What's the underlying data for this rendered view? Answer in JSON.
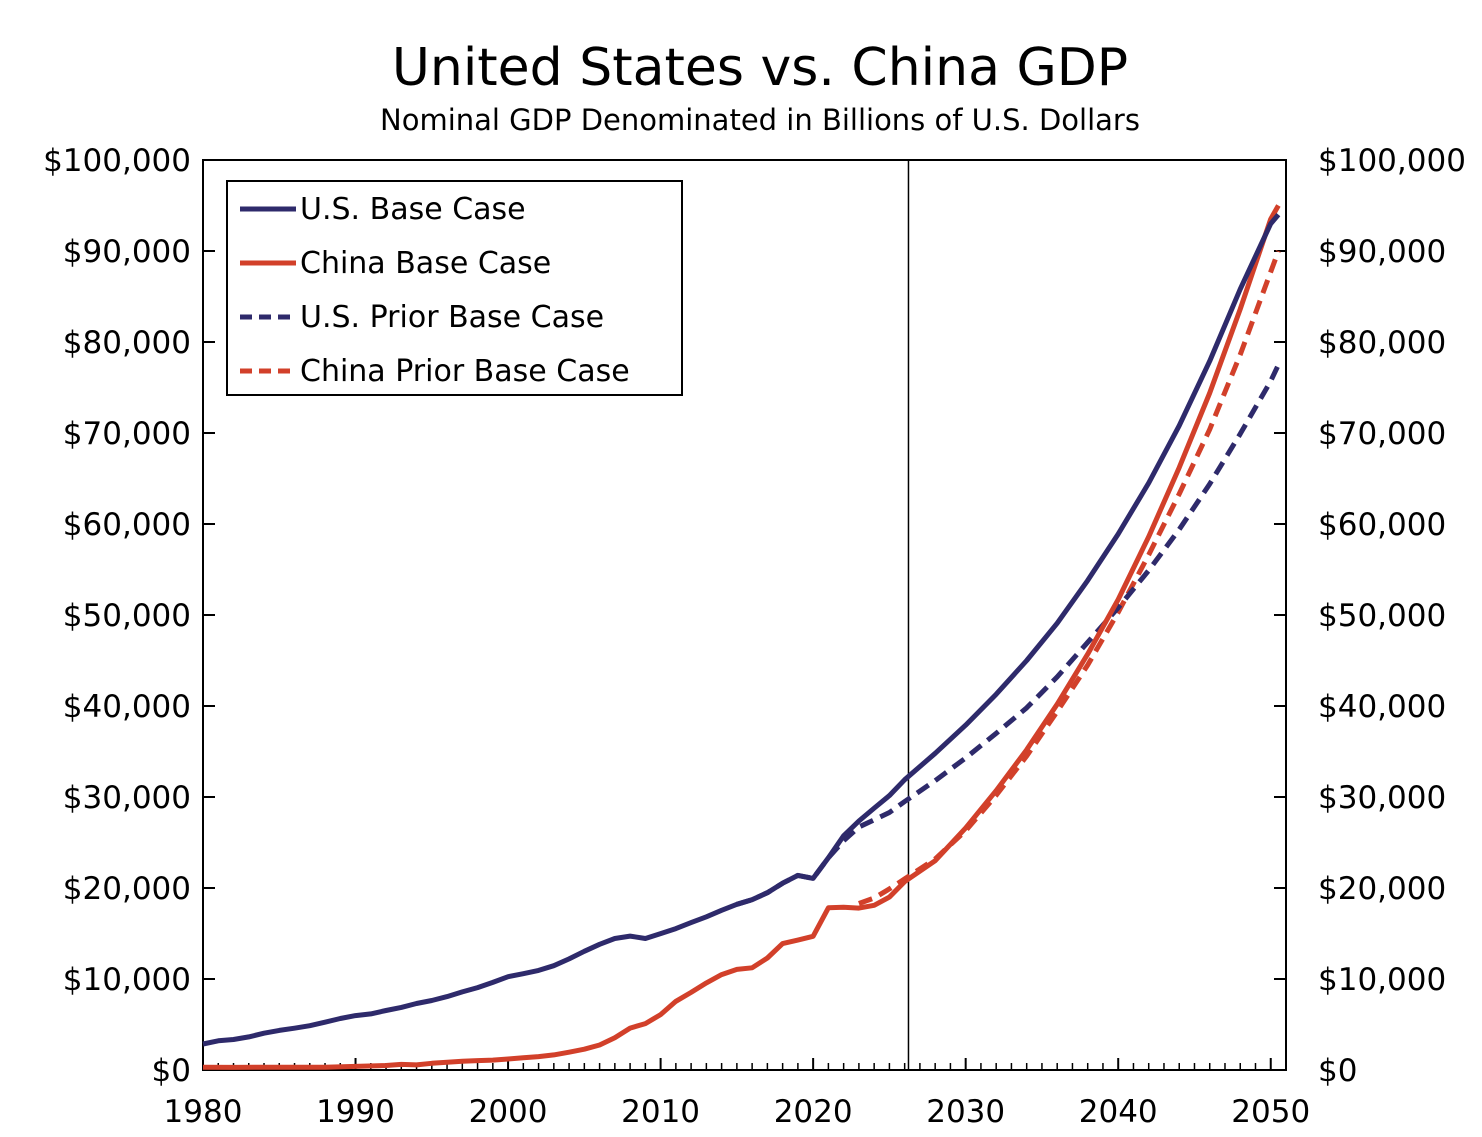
{
  "chart_data": {
    "type": "line",
    "title": "United States vs. China GDP",
    "subtitle": "Nominal GDP Denominated in Billions of U.S. Dollars",
    "xlabel": "",
    "ylabel": "",
    "xlim": [
      1980,
      2051
    ],
    "ylim": [
      0,
      100000
    ],
    "x_ticks": [
      1980,
      1990,
      2000,
      2010,
      2020,
      2030,
      2040,
      2050
    ],
    "y_ticks": [
      0,
      10000,
      20000,
      30000,
      40000,
      50000,
      60000,
      70000,
      80000,
      90000,
      100000
    ],
    "y_tick_labels": [
      "$0",
      "$10,000",
      "$20,000",
      "$30,000",
      "$40,000",
      "$50,000",
      "$60,000",
      "$70,000",
      "$80,000",
      "$90,000",
      "$100,000"
    ],
    "y2_tick_labels": [
      "$0",
      "$10,000",
      "$20,000",
      "$30,000",
      "$40,000",
      "$50,000",
      "$60,000",
      "$70,000",
      "$80,000",
      "$90,000",
      "$100,000"
    ],
    "forecast_divider_x": 2026.25,
    "legend_position": "top-left",
    "colors": {
      "us": "#2e2a6b",
      "china": "#d2402a"
    },
    "series": [
      {
        "name": "U.S. Base Case",
        "color": "#2e2a6b",
        "style": "solid",
        "x": [
          1980,
          1981,
          1982,
          1983,
          1984,
          1985,
          1986,
          1987,
          1988,
          1989,
          1990,
          1991,
          1992,
          1993,
          1994,
          1995,
          1996,
          1997,
          1998,
          1999,
          2000,
          2001,
          2002,
          2003,
          2004,
          2005,
          2006,
          2007,
          2008,
          2009,
          2010,
          2011,
          2012,
          2013,
          2014,
          2015,
          2016,
          2017,
          2018,
          2019,
          2020,
          2021,
          2022,
          2023,
          2024,
          2025,
          2026,
          2028,
          2030,
          2032,
          2034,
          2036,
          2038,
          2040,
          2042,
          2044,
          2046,
          2048,
          2050,
          2050.5
        ],
        "y": [
          2860,
          3210,
          3350,
          3640,
          4040,
          4350,
          4590,
          4870,
          5250,
          5660,
          5980,
          6170,
          6540,
          6880,
          7310,
          7640,
          8070,
          8580,
          9060,
          9630,
          10250,
          10580,
          10940,
          11460,
          12210,
          13040,
          13810,
          14450,
          14710,
          14450,
          14990,
          15540,
          16200,
          16840,
          17550,
          18210,
          18710,
          19480,
          20530,
          21380,
          21060,
          23320,
          25740,
          27360,
          28780,
          30150,
          31900,
          34800,
          37900,
          41300,
          45000,
          49100,
          53800,
          58900,
          64500,
          70800,
          77900,
          85800,
          93000,
          94000
        ]
      },
      {
        "name": "China Base Case",
        "color": "#d2402a",
        "style": "solid",
        "x": [
          1980,
          1982,
          1984,
          1986,
          1988,
          1990,
          1992,
          1993,
          1994,
          1995,
          1996,
          1997,
          1998,
          1999,
          2000,
          2001,
          2002,
          2003,
          2004,
          2005,
          2006,
          2007,
          2008,
          2009,
          2010,
          2011,
          2012,
          2013,
          2014,
          2015,
          2016,
          2017,
          2018,
          2019,
          2020,
          2021,
          2022,
          2023,
          2024,
          2025,
          2026,
          2028,
          2030,
          2032,
          2034,
          2036,
          2038,
          2040,
          2042,
          2044,
          2046,
          2048,
          2050,
          2050.5
        ],
        "y": [
          300,
          290,
          310,
          300,
          310,
          400,
          490,
          620,
          560,
          740,
          860,
          960,
          1030,
          1090,
          1210,
          1340,
          1470,
          1660,
          1960,
          2290,
          2750,
          3550,
          4600,
          5100,
          6090,
          7550,
          8530,
          9570,
          10480,
          11060,
          11230,
          12310,
          13890,
          14280,
          14690,
          17820,
          17880,
          17790,
          18100,
          19000,
          20700,
          23000,
          26600,
          30700,
          35200,
          40200,
          45700,
          51700,
          58600,
          66200,
          74400,
          83600,
          93500,
          95000
        ]
      },
      {
        "name": "U.S. Prior Base Case",
        "color": "#2e2a6b",
        "style": "dashed",
        "x": [
          2015,
          2016,
          2017,
          2018,
          2019,
          2020,
          2021,
          2022,
          2023,
          2024,
          2025,
          2026,
          2028,
          2030,
          2032,
          2034,
          2036,
          2038,
          2040,
          2042,
          2044,
          2046,
          2048,
          2050,
          2050.5
        ],
        "y": [
          18210,
          18710,
          19480,
          20530,
          21380,
          21060,
          23320,
          25200,
          26700,
          27500,
          28300,
          29500,
          31800,
          34300,
          37000,
          39800,
          43200,
          47000,
          50800,
          54900,
          59400,
          64400,
          69900,
          75700,
          77500
        ]
      },
      {
        "name": "China Prior Base Case",
        "color": "#d2402a",
        "style": "dashed",
        "x": [
          2023,
          2024,
          2025,
          2026,
          2028,
          2030,
          2032,
          2034,
          2036,
          2038,
          2040,
          2042,
          2044,
          2046,
          2048,
          2050,
          2050.5
        ],
        "y": [
          18300,
          18900,
          19900,
          21000,
          23200,
          26300,
          30200,
          34500,
          39400,
          44500,
          50300,
          56600,
          63300,
          70400,
          78600,
          87700,
          90000
        ]
      }
    ]
  }
}
